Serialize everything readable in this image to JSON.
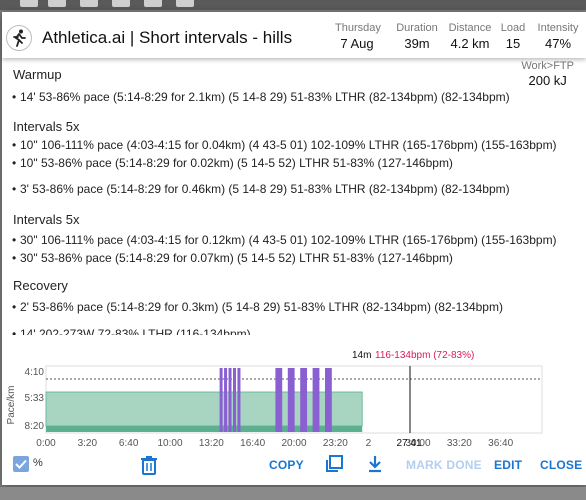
{
  "app": {
    "title": "Athletica.ai | Short intervals - hills"
  },
  "stats": [
    {
      "label": "Thursday",
      "value": "7 Aug"
    },
    {
      "label": "Duration",
      "value": "39m"
    },
    {
      "label": "Distance",
      "value": "4.2 km"
    },
    {
      "label": "Load",
      "value": "15"
    },
    {
      "label": "Intensity",
      "value": "47%"
    }
  ],
  "work": {
    "label": "Work>FTP",
    "value": "200 kJ"
  },
  "sections": [
    {
      "title": "Warmup",
      "steps": [
        "14' 53-86% pace (5:14-8:29 for 2.1km) (5 14-8 29) 51-83% LTHR (82-134bpm) (82-134bpm)"
      ]
    },
    {
      "title": "Intervals 5x",
      "steps": [
        "10\" 106-111% pace (4:03-4:15 for 0.04km) (4 43-5 01) 102-109% LTHR (165-176bpm) (155-163bpm)",
        "10\" 53-86% pace (5:14-8:29 for 0.02km) (5 14-5 52) LTHR 51-83% (127-146bpm)",
        "3' 53-86% pace (5:14-8:29 for 0.46km) (5 14-8 29) 51-83% LTHR (82-134bpm) (82-134bpm)"
      ]
    },
    {
      "title": "Intervals 5x",
      "steps": [
        "30\" 106-111% pace (4:03-4:15 for 0.12km) (4 43-5 01) 102-109% LTHR (165-176bpm) (155-163bpm)",
        "30\" 53-86% pace (5:14-8:29 for 0.07km) (5 14-5 52) LTHR 51-83% (127-146bpm)"
      ]
    },
    {
      "title": "Recovery",
      "steps": [
        "2' 53-86% pace (5:14-8:29 for 0.3km) (5 14-8 29) 51-83% LTHR (82-134bpm) (82-134bpm)",
        "14' 202-273W 72-83% LTHR (116-134bpm)"
      ]
    }
  ],
  "chart": {
    "ylabel": "Pace/km",
    "yticks": [
      "4:10",
      "5:33",
      "8:20"
    ],
    "xticks": [
      "0:00",
      "3:20",
      "6:40",
      "10:00",
      "13:20",
      "16:40",
      "20:00",
      "23:20",
      "2",
      "30:00",
      "33:20",
      "36:40"
    ],
    "cursor_time": "27:41",
    "tooltip_duration": "14m",
    "tooltip_hr": "116-134bpm (72-83%)",
    "colors": {
      "green": "#a8d5c1",
      "greenDark": "#5bb08f",
      "purple": "#8a5fd1",
      "red": "#d81b60"
    }
  },
  "chart_data": {
    "type": "area",
    "ylabel": "Pace/km",
    "x_unit": "minutes",
    "xlim": [
      0,
      40
    ],
    "segments": [
      {
        "start": 0,
        "end": 14,
        "kind": "easy"
      },
      {
        "start": 14,
        "end": 15.8,
        "kind": "interval-block",
        "reps": 5
      },
      {
        "start": 18.5,
        "end": 23.5,
        "kind": "interval-block",
        "reps": 5
      },
      {
        "start": 23.5,
        "end": 25.5,
        "kind": "easy"
      }
    ],
    "cursor": "27:41"
  },
  "footer": {
    "checkbox_label": "%",
    "copy": "COPY",
    "mark_done": "MARK DONE",
    "edit": "EDIT",
    "close": "CLOSE"
  }
}
